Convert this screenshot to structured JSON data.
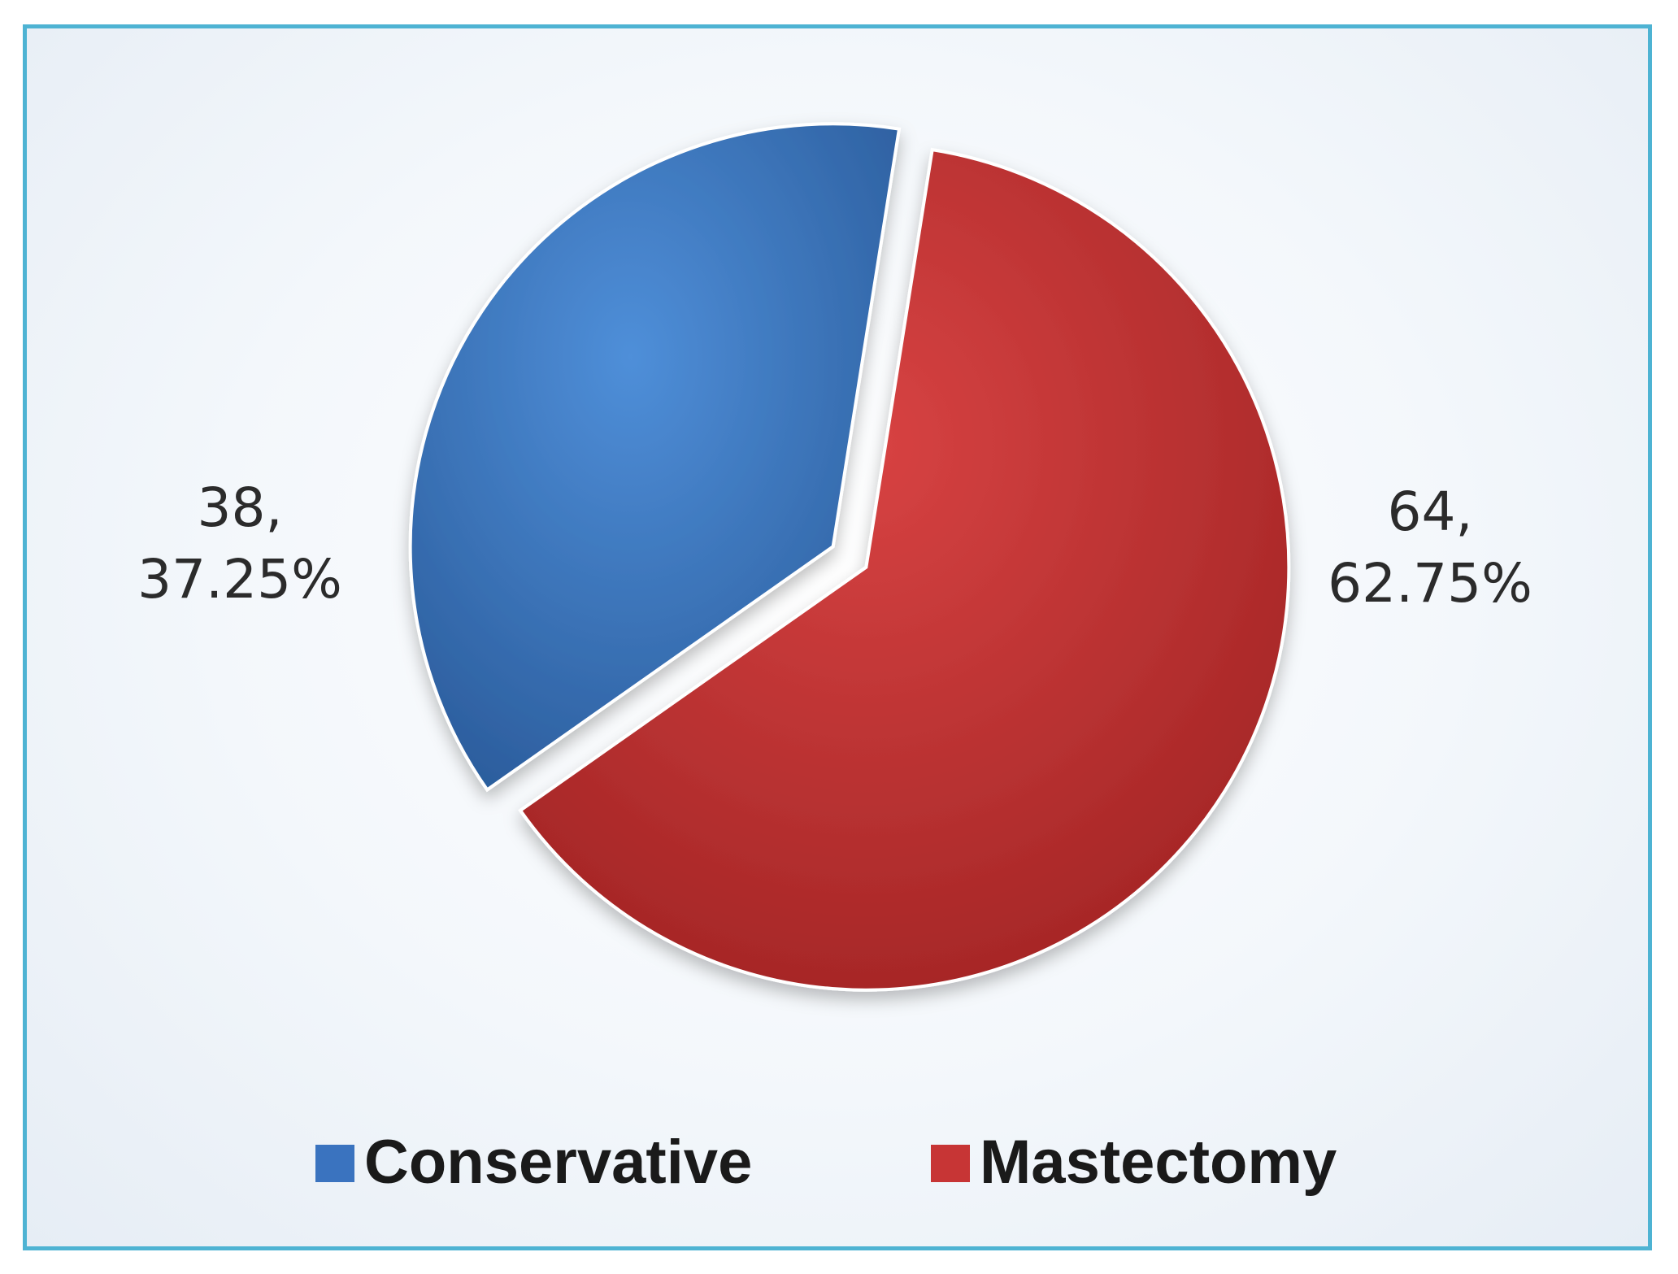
{
  "chart_data": {
    "type": "pie",
    "title": "",
    "categories": [
      "Conservative",
      "Mastectomy"
    ],
    "values": [
      38,
      64
    ],
    "percentages": [
      "37.25%",
      "62.75%"
    ],
    "labels": [
      {
        "line1": "38,",
        "line2": "37.25%"
      },
      {
        "line1": "64,",
        "line2": "62.75%"
      }
    ],
    "colors": [
      "#3a73bf",
      "#c73535"
    ],
    "exploded": true,
    "legend": {
      "placement": "bottom",
      "items": [
        {
          "label": "Conservative",
          "color": "#3a73bf"
        },
        {
          "label": "Mastectomy",
          "color": "#c73535"
        }
      ]
    }
  }
}
